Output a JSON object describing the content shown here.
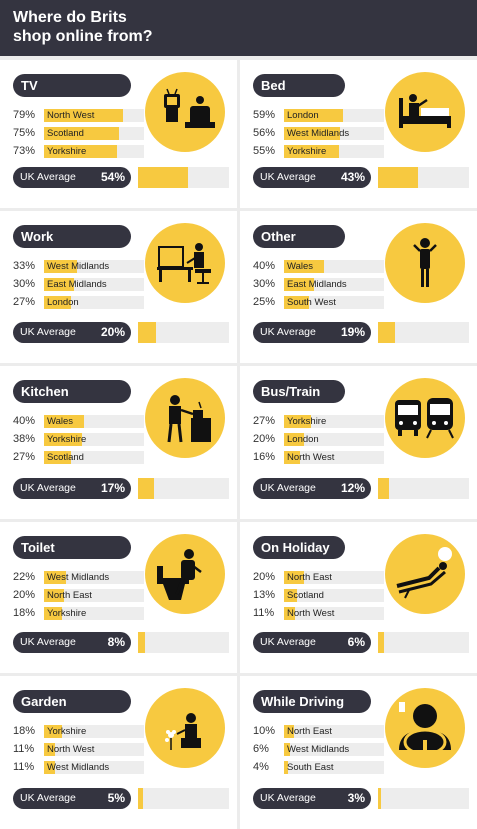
{
  "header": {
    "title": "Where do Brits\nshop online from?"
  },
  "colors": {
    "accent": "#f7c940",
    "dark": "#343440",
    "track": "#ededed"
  },
  "chart_data": [
    {
      "type": "bar",
      "title": "TV",
      "icon": "tv-icon",
      "categories": [
        "North West",
        "Scotland",
        "Yorkshire"
      ],
      "values": [
        79,
        75,
        73
      ],
      "value_labels": [
        "79%",
        "75%",
        "73%"
      ],
      "average_label": "UK Average",
      "average": 54,
      "average_text": "54%"
    },
    {
      "type": "bar",
      "title": "Bed",
      "icon": "bed-icon",
      "categories": [
        "London",
        "West Midlands",
        "Yorkshire"
      ],
      "values": [
        59,
        56,
        55
      ],
      "value_labels": [
        "59%",
        "56%",
        "55%"
      ],
      "average_label": "UK Average",
      "average": 43,
      "average_text": "43%"
    },
    {
      "type": "bar",
      "title": "Work",
      "icon": "desk-icon",
      "categories": [
        "West Midlands",
        "East Midlands",
        "London"
      ],
      "values": [
        33,
        30,
        27
      ],
      "value_labels": [
        "33%",
        "30%",
        "27%"
      ],
      "average_label": "UK Average",
      "average": 20,
      "average_text": "20%"
    },
    {
      "type": "bar",
      "title": "Other",
      "icon": "person-icon",
      "categories": [
        "Wales",
        "East Midlands",
        "South West"
      ],
      "values": [
        40,
        30,
        25
      ],
      "value_labels": [
        "40%",
        "30%",
        "25%"
      ],
      "average_label": "UK Average",
      "average": 19,
      "average_text": "19%"
    },
    {
      "type": "bar",
      "title": "Kitchen",
      "icon": "kitchen-icon",
      "categories": [
        "Wales",
        "Yorkshire",
        "Scotland"
      ],
      "values": [
        40,
        38,
        27
      ],
      "value_labels": [
        "40%",
        "38%",
        "27%"
      ],
      "average_label": "UK Average",
      "average": 17,
      "average_text": "17%"
    },
    {
      "type": "bar",
      "title": "Bus/Train",
      "icon": "bus-train-icon",
      "categories": [
        "Yorkshire",
        "London",
        "North West"
      ],
      "values": [
        27,
        20,
        16
      ],
      "value_labels": [
        "27%",
        "20%",
        "16%"
      ],
      "average_label": "UK Average",
      "average": 12,
      "average_text": "12%"
    },
    {
      "type": "bar",
      "title": "Toilet",
      "icon": "toilet-icon",
      "categories": [
        "West Midlands",
        "North East",
        "Yorkshire"
      ],
      "values": [
        22,
        20,
        18
      ],
      "value_labels": [
        "22%",
        "20%",
        "18%"
      ],
      "average_label": "UK Average",
      "average": 8,
      "average_text": "8%"
    },
    {
      "type": "bar",
      "title": "On Holiday",
      "icon": "sunbed-icon",
      "categories": [
        "North East",
        "Scotland",
        "North West"
      ],
      "values": [
        20,
        13,
        11
      ],
      "value_labels": [
        "20%",
        "13%",
        "11%"
      ],
      "average_label": "UK Average",
      "average": 6,
      "average_text": "6%"
    },
    {
      "type": "bar",
      "title": "Garden",
      "icon": "garden-icon",
      "categories": [
        "Yorkshire",
        "North West",
        "West Midlands"
      ],
      "values": [
        18,
        11,
        11
      ],
      "value_labels": [
        "18%",
        "11%",
        "11%"
      ],
      "average_label": "UK Average",
      "average": 5,
      "average_text": "5%"
    },
    {
      "type": "bar",
      "title": "While Driving",
      "icon": "steering-wheel-icon",
      "categories": [
        "North East",
        "West Midlands",
        "South East"
      ],
      "values": [
        10,
        6,
        4
      ],
      "value_labels": [
        "10%",
        "6%",
        "4%"
      ],
      "average_label": "UK Average",
      "average": 3,
      "average_text": "3%"
    }
  ]
}
